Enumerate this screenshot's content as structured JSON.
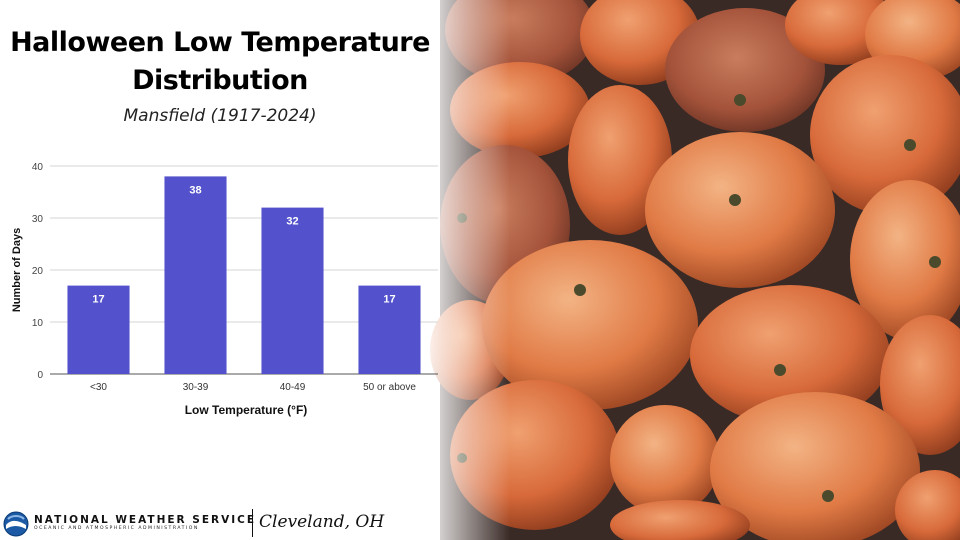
{
  "title": "Halloween Low Temperature Distribution",
  "subtitle": "Mansfield (1917-2024)",
  "colors": {
    "bar": "#5352cc",
    "grid": "#d6d6d6",
    "axis_text": "#444444"
  },
  "footer": {
    "agency": "NATIONAL WEATHER SERVICE",
    "agency_sub": "OCEANIC AND ATMOSPHERIC ADMINISTRATION",
    "office": "Cleveland, OH",
    "logo_icon": "noaa-logo-icon"
  },
  "background_image": "pumpkins-photo",
  "chart_data": {
    "type": "bar",
    "categories": [
      "<30",
      "30-39",
      "40-49",
      "50 or above"
    ],
    "values": [
      17,
      38,
      32,
      17
    ],
    "data_labels": [
      "17",
      "38",
      "32",
      "17"
    ],
    "xlabel": "Low Temperature (°F)",
    "ylabel": "Number of Days",
    "ylim": [
      0,
      40
    ],
    "yticks": [
      0,
      10,
      20,
      30,
      40
    ],
    "grid": true,
    "legend": "none"
  }
}
